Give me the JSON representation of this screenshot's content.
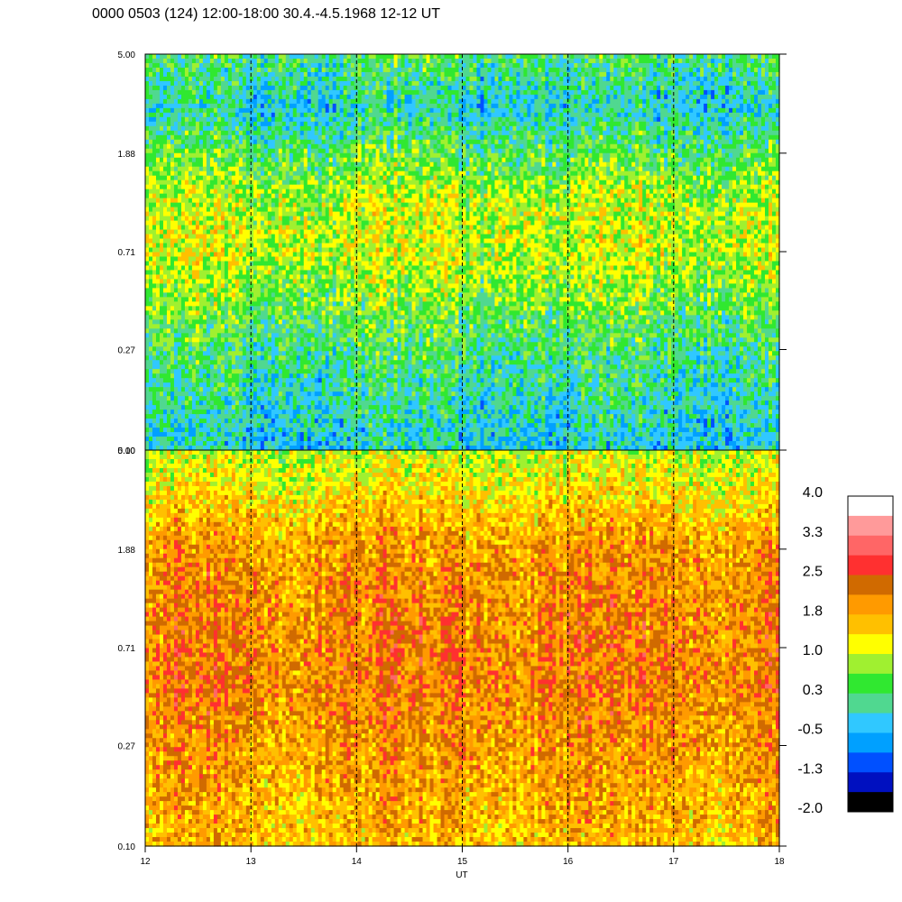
{
  "title": "0000 0503 (124) 12:00-18:00 30.4.-4.5.1968  12-12 UT",
  "chart_data": [
    {
      "type": "heatmap",
      "panel": "upper",
      "x_range": [
        12,
        18
      ],
      "y_scale": "log",
      "y_range": [
        0.1,
        5.0
      ],
      "y_tick_labels": [
        "5.00",
        "1.88",
        "0.71",
        "0.27",
        "0.10"
      ],
      "y_tick_values": [
        5.0,
        1.88,
        0.71,
        0.27,
        0.1
      ],
      "value_profile": [
        {
          "y": 0.1,
          "value": -0.3
        },
        {
          "y": 0.27,
          "value": 0.2
        },
        {
          "y": 0.5,
          "value": 0.7
        },
        {
          "y": 0.71,
          "value": 1.0
        },
        {
          "y": 1.2,
          "value": 0.9
        },
        {
          "y": 1.88,
          "value": 0.4
        },
        {
          "y": 3.0,
          "value": -0.2
        },
        {
          "y": 5.0,
          "value": 0.3
        }
      ]
    },
    {
      "type": "heatmap",
      "panel": "lower",
      "x_range": [
        12,
        18
      ],
      "x_ticks": [
        12,
        13,
        14,
        15,
        16,
        17,
        18
      ],
      "xlabel": "UT",
      "y_scale": "log",
      "y_range": [
        0.1,
        5.0
      ],
      "y_tick_labels": [
        "5.00",
        "1.88",
        "0.71",
        "0.27",
        "0.10"
      ],
      "y_tick_values": [
        5.0,
        1.88,
        0.71,
        0.27,
        0.1
      ],
      "value_profile": [
        {
          "y": 0.1,
          "value": 1.6
        },
        {
          "y": 0.27,
          "value": 1.9
        },
        {
          "y": 0.5,
          "value": 2.1
        },
        {
          "y": 0.71,
          "value": 2.1
        },
        {
          "y": 1.2,
          "value": 2.0
        },
        {
          "y": 1.88,
          "value": 1.9
        },
        {
          "y": 3.0,
          "value": 1.4
        },
        {
          "y": 5.0,
          "value": 0.9
        }
      ]
    }
  ],
  "dashed_lines_x": [
    13,
    14,
    15,
    16,
    17
  ],
  "colorbar": {
    "labels": [
      "4.0",
      "3.3",
      "2.5",
      "1.8",
      "1.0",
      "0.3",
      "-0.5",
      "-1.3",
      "-2.0"
    ],
    "colors_top_to_bottom": [
      "#ffffff",
      "#ff9a9a",
      "#ff6666",
      "#ff3030",
      "#d06a00",
      "#ff9a00",
      "#ffc000",
      "#ffff00",
      "#a0f030",
      "#30e830",
      "#50d890",
      "#30c8ff",
      "#00a0ff",
      "#0050ff",
      "#0010c0",
      "#000000"
    ]
  }
}
